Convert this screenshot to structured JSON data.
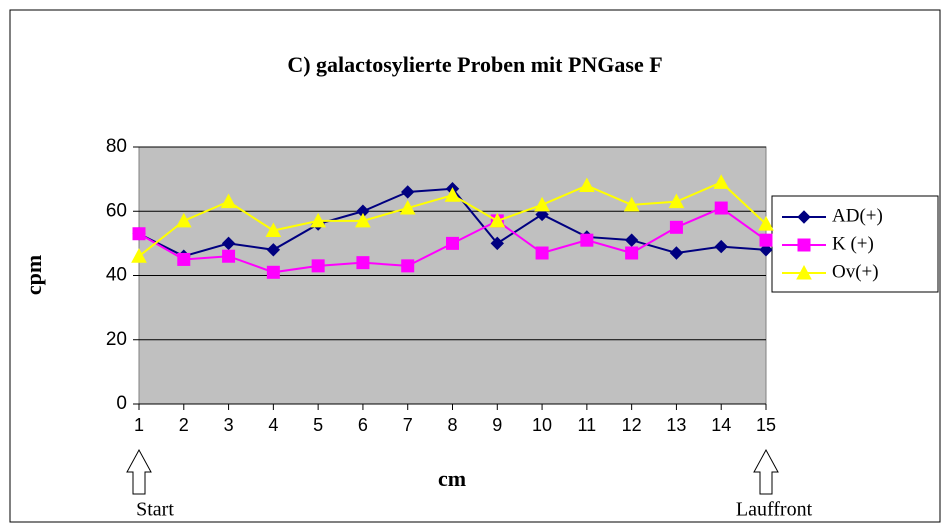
{
  "chart_data": {
    "type": "line",
    "title": "C) galactosylierte Proben mit PNGase F",
    "xlabel": "cm",
    "ylabel": "cpm",
    "categories": [
      "1",
      "2",
      "3",
      "4",
      "5",
      "6",
      "7",
      "8",
      "9",
      "10",
      "11",
      "12",
      "13",
      "14",
      "15"
    ],
    "series": [
      {
        "name": "AD(+)",
        "color": "#000080",
        "marker": "diamond",
        "values": [
          53,
          46,
          50,
          48,
          56,
          60,
          66,
          67,
          50,
          59,
          52,
          51,
          47,
          49,
          48
        ]
      },
      {
        "name": "K (+)",
        "color": "#ff00ff",
        "marker": "square",
        "values": [
          53,
          45,
          46,
          41,
          43,
          44,
          43,
          50,
          57,
          47,
          51,
          47,
          55,
          61,
          51
        ]
      },
      {
        "name": "Ov(+)",
        "color": "#ffff00",
        "marker": "triangle",
        "values": [
          46,
          57,
          63,
          54,
          57,
          57,
          61,
          65,
          57,
          62,
          68,
          62,
          63,
          69,
          56
        ]
      }
    ],
    "ylim": [
      0,
      80
    ],
    "yticks": [
      0,
      20,
      40,
      60,
      80
    ],
    "grid": true,
    "legend": "right",
    "annotations": [
      "Start",
      "Lauffront"
    ]
  }
}
